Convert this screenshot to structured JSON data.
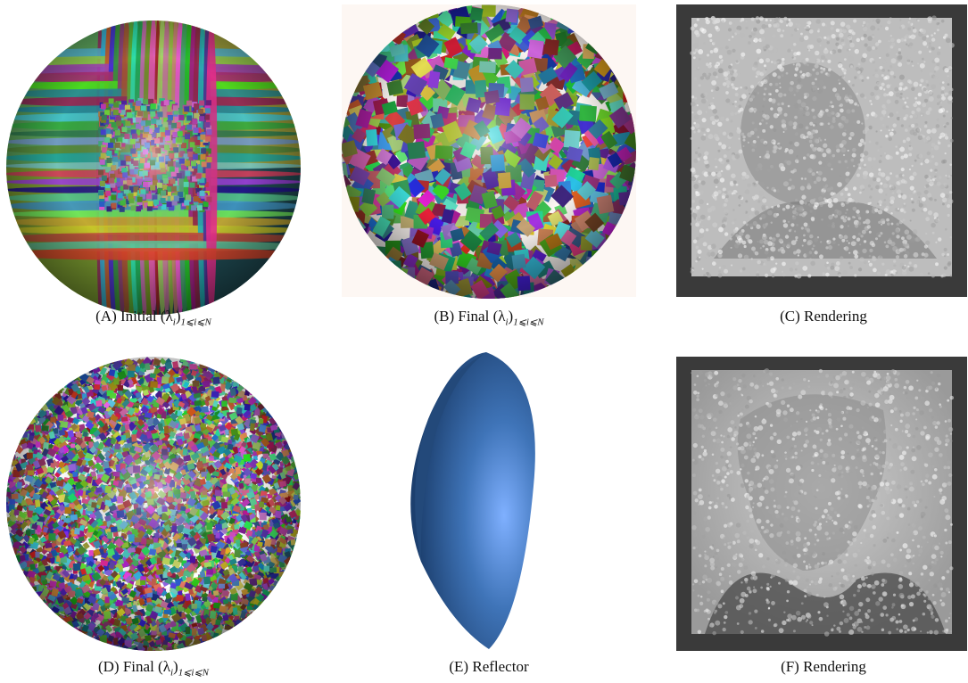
{
  "panels": [
    {
      "label": "(A)",
      "text": "Initial",
      "math": {
        "base": "(λ",
        "sub": "i",
        "close": ")",
        "range": "1⩽i⩽N"
      }
    },
    {
      "label": "(B)",
      "text": "Final",
      "math": {
        "base": "(λ",
        "sub": "i",
        "close": ")",
        "range": "1⩽i⩽N"
      }
    },
    {
      "label": "(C)",
      "text": "Rendering"
    },
    {
      "label": "(D)",
      "text": "Final",
      "math": {
        "base": "(λ",
        "sub": "i",
        "close": ")",
        "range": "1⩽i⩽N"
      }
    },
    {
      "label": "(E)",
      "text": "Reflector"
    },
    {
      "label": "(F)",
      "text": "Rendering"
    }
  ]
}
